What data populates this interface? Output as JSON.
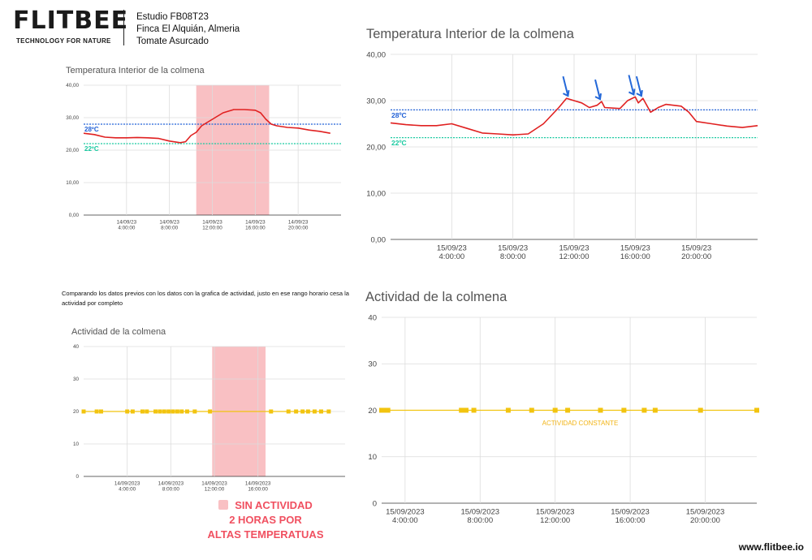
{
  "header": {
    "logo_text": "FLITBEE",
    "logo_tagline": "TECHNOLOGY FOR NATURE",
    "study_lines": [
      "Estudio FB08T23",
      "Finca El Alquián, Almeria",
      "Tomate Asurcado"
    ]
  },
  "note_text": "Comparando los datos previos con los datos con la grafica de actividad, justo en ese rango horario cesa la actividad por completo",
  "no_activity_lines": [
    "SIN ACTIVIDAD",
    "2 HORAS POR",
    "ALTAS TEMPERATUAS"
  ],
  "website": "www.flitbee.io",
  "colors": {
    "temperature_line": "#e02020",
    "activity_line": "#f2c40f",
    "threshold_28": "#1f5fd6",
    "threshold_22": "#19c9a0",
    "highlight": "#f9c0c3",
    "annotation_arrow": "#2468d8",
    "constant_label": "#f2b416"
  },
  "chart_data": [
    {
      "id": "temp_14",
      "type": "line",
      "title": "Temperatura Interior de la colmena",
      "ylim": [
        0,
        40
      ],
      "yticks": [
        "0,00",
        "10,00",
        "20,00",
        "30,00",
        "40,00"
      ],
      "xlim": [
        0,
        24
      ],
      "xticks": [
        {
          "x": 4,
          "l1": "14/09/23",
          "l2": "4:00:00"
        },
        {
          "x": 8,
          "l1": "14/09/23",
          "l2": "8:00:00"
        },
        {
          "x": 12,
          "l1": "14/09/23",
          "l2": "12:00:00"
        },
        {
          "x": 16,
          "l1": "14/09/23",
          "l2": "16:00:00"
        },
        {
          "x": 20,
          "l1": "14/09/23",
          "l2": "20:00:00"
        }
      ],
      "thresholds": [
        {
          "value": 28,
          "label": "28ºC",
          "color": "#1f5fd6"
        },
        {
          "value": 22,
          "label": "22ºC",
          "color": "#19c9a0"
        }
      ],
      "highlight": [
        10.5,
        17.3
      ],
      "series": [
        {
          "color": "#e02020",
          "points": [
            [
              0,
              25.2
            ],
            [
              1,
              24.8
            ],
            [
              2,
              24
            ],
            [
              3,
              23.8
            ],
            [
              4,
              23.8
            ],
            [
              5,
              23.9
            ],
            [
              6,
              23.8
            ],
            [
              7,
              23.6
            ],
            [
              8,
              22.8
            ],
            [
              9,
              22.3
            ],
            [
              9.5,
              22.6
            ],
            [
              10,
              24.5
            ],
            [
              10.5,
              25.5
            ],
            [
              11,
              27.5
            ],
            [
              11.5,
              28.5
            ],
            [
              12,
              29.5
            ],
            [
              12.5,
              30.5
            ],
            [
              13,
              31.5
            ],
            [
              13.5,
              32
            ],
            [
              14,
              32.5
            ],
            [
              15,
              32.5
            ],
            [
              16,
              32.3
            ],
            [
              16.5,
              31.5
            ],
            [
              17,
              29.5
            ],
            [
              17.5,
              28
            ],
            [
              18,
              27.5
            ],
            [
              19,
              27
            ],
            [
              20,
              26.8
            ],
            [
              21,
              26.2
            ],
            [
              22,
              25.8
            ],
            [
              23,
              25.2
            ]
          ]
        }
      ]
    },
    {
      "id": "temp_15",
      "type": "line",
      "title": "Temperatura Interior de la colmena",
      "ylim": [
        0,
        40
      ],
      "yticks": [
        "0,00",
        "10,00",
        "20,00",
        "30,00",
        "40,00"
      ],
      "xlim": [
        0,
        24
      ],
      "xticks": [
        {
          "x": 4,
          "l1": "15/09/23",
          "l2": "4:00:00"
        },
        {
          "x": 8,
          "l1": "15/09/23",
          "l2": "8:00:00"
        },
        {
          "x": 12,
          "l1": "15/09/23",
          "l2": "12:00:00"
        },
        {
          "x": 16,
          "l1": "15/09/23",
          "l2": "16:00:00"
        },
        {
          "x": 20,
          "l1": "15/09/23",
          "l2": "20:00:00"
        }
      ],
      "thresholds": [
        {
          "value": 28,
          "label": "28ºC",
          "color": "#1f5fd6"
        },
        {
          "value": 22,
          "label": "22ºC",
          "color": "#19c9a0"
        }
      ],
      "arrows": [
        11.6,
        13.7,
        15.9,
        16.4
      ],
      "series": [
        {
          "color": "#e02020",
          "points": [
            [
              0,
              25.2
            ],
            [
              1,
              24.8
            ],
            [
              2,
              24.6
            ],
            [
              3,
              24.6
            ],
            [
              4,
              25
            ],
            [
              5,
              24
            ],
            [
              6,
              23
            ],
            [
              7,
              22.8
            ],
            [
              8,
              22.6
            ],
            [
              9,
              22.8
            ],
            [
              10,
              25
            ],
            [
              11,
              28.5
            ],
            [
              11.5,
              30.5
            ],
            [
              12,
              30
            ],
            [
              12.5,
              29.5
            ],
            [
              13,
              28.5
            ],
            [
              13.5,
              29
            ],
            [
              13.8,
              29.8
            ],
            [
              14,
              28.5
            ],
            [
              15,
              28.3
            ],
            [
              15.5,
              30
            ],
            [
              16,
              30.8
            ],
            [
              16.2,
              29.5
            ],
            [
              16.5,
              30.5
            ],
            [
              17,
              27.5
            ],
            [
              17.5,
              28.5
            ],
            [
              18,
              29.2
            ],
            [
              19,
              28.8
            ],
            [
              19.5,
              27.5
            ],
            [
              20,
              25.5
            ],
            [
              21,
              25
            ],
            [
              22,
              24.5
            ],
            [
              23,
              24.2
            ],
            [
              24,
              24.6
            ]
          ]
        }
      ]
    },
    {
      "id": "act_14",
      "type": "line",
      "title": "Actividad de la colmena",
      "ylim": [
        0,
        40
      ],
      "yticks": [
        "0",
        "10",
        "20",
        "30",
        "40"
      ],
      "xlim": [
        0,
        24
      ],
      "xticks": [
        {
          "x": 4,
          "l1": "14/09/2023",
          "l2": "4:00:00"
        },
        {
          "x": 8,
          "l1": "14/09/2023",
          "l2": "8:00:00"
        },
        {
          "x": 12,
          "l1": "14/09/2023",
          "l2": "12:00:00"
        },
        {
          "x": 16,
          "l1": "14/09/2023",
          "l2": "16:00:00"
        }
      ],
      "highlight": [
        11.8,
        16.7
      ],
      "series": [
        {
          "color": "#f2c40f",
          "points": [
            [
              0,
              20
            ],
            [
              1.2,
              20
            ],
            [
              1.6,
              20
            ],
            [
              4,
              20
            ],
            [
              4.5,
              20
            ],
            [
              5.4,
              20
            ],
            [
              5.8,
              20
            ],
            [
              6.6,
              20
            ],
            [
              7.0,
              20
            ],
            [
              7.4,
              20
            ],
            [
              7.8,
              20
            ],
            [
              8.2,
              20
            ],
            [
              8.6,
              20
            ],
            [
              9.0,
              20
            ],
            [
              9.5,
              20
            ],
            [
              10.2,
              20
            ],
            [
              11.6,
              20
            ],
            [
              17.2,
              20
            ],
            [
              18.8,
              20
            ],
            [
              19.5,
              20
            ],
            [
              20.1,
              20
            ],
            [
              20.6,
              20
            ],
            [
              21.2,
              20
            ],
            [
              21.8,
              20
            ],
            [
              22.5,
              20
            ]
          ]
        }
      ]
    },
    {
      "id": "act_15",
      "type": "line",
      "title": "Actividad de la colmena",
      "ylim": [
        0,
        40
      ],
      "yticks": [
        "0",
        "10",
        "20",
        "30",
        "40"
      ],
      "xlim": [
        0,
        24
      ],
      "xticks": [
        {
          "x": 1.5,
          "l1": "15/09/2023",
          "l2": "4:00:00"
        },
        {
          "x": 6.3,
          "l1": "15/09/2023",
          "l2": "8:00:00"
        },
        {
          "x": 11.1,
          "l1": "15/09/2023",
          "l2": "12:00:00"
        },
        {
          "x": 15.9,
          "l1": "15/09/2023",
          "l2": "16:00:00"
        },
        {
          "x": 20.7,
          "l1": "15/09/2023",
          "l2": "20:00:00"
        }
      ],
      "annotation": {
        "text": "ACTIVIDAD CONSTANTE",
        "x": 12.7,
        "y": 16.8
      },
      "series": [
        {
          "color": "#f2c40f",
          "points": [
            [
              0,
              20
            ],
            [
              0.2,
              20
            ],
            [
              0.4,
              20
            ],
            [
              5.1,
              20
            ],
            [
              5.4,
              20
            ],
            [
              5.9,
              20
            ],
            [
              8.1,
              20
            ],
            [
              9.6,
              20
            ],
            [
              11.1,
              20
            ],
            [
              11.9,
              20
            ],
            [
              14.0,
              20
            ],
            [
              15.5,
              20
            ],
            [
              16.8,
              20
            ],
            [
              17.5,
              20
            ],
            [
              20.4,
              20
            ],
            [
              24,
              20
            ]
          ]
        }
      ]
    }
  ]
}
